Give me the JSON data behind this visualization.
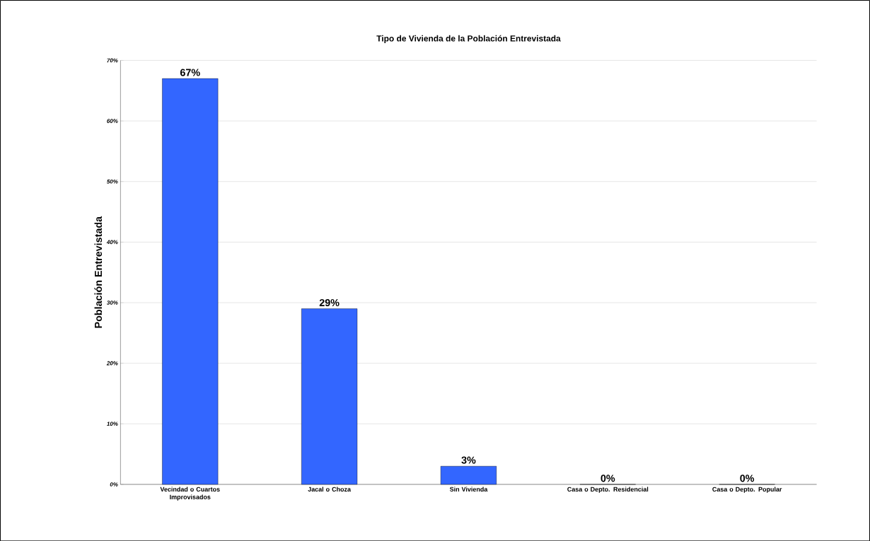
{
  "chart_data": {
    "type": "bar",
    "title": "Tipo de Vivienda de la Población Entrevistada",
    "ylabel": "Población Entrevistada",
    "categories": [
      "Vecindad o Cuartos Improvisados",
      "Jacal o Choza",
      "Sin Vivienda",
      "Casa o Depto. Residencial",
      "Casa o Depto. Popular"
    ],
    "values": [
      67,
      29,
      3,
      0,
      0
    ],
    "value_labels": [
      "67%",
      "29%",
      "3%",
      "0%",
      "0%"
    ],
    "color": "#3366ff",
    "ylim": [
      0,
      70
    ],
    "yticks": [
      {
        "value": 0,
        "label": "0%"
      },
      {
        "value": 10,
        "label": "10%"
      },
      {
        "value": 20,
        "label": "20%"
      },
      {
        "value": 30,
        "label": "30%"
      },
      {
        "value": 40,
        "label": "40%"
      },
      {
        "value": 50,
        "label": "50%"
      },
      {
        "value": 60,
        "label": "60%"
      },
      {
        "value": 70,
        "label": "70%"
      }
    ],
    "grid": "y"
  }
}
